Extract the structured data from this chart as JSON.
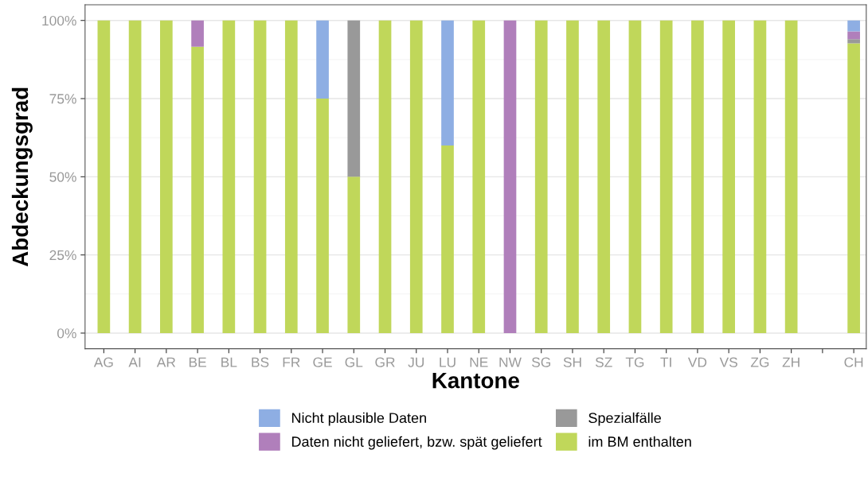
{
  "chart_data": {
    "type": "bar",
    "stacked": true,
    "xlabel": "Kantone",
    "ylabel": "Abdeckungsgrad",
    "categories": [
      "AG",
      "AI",
      "AR",
      "BE",
      "BL",
      "BS",
      "FR",
      "GE",
      "GL",
      "GR",
      "JU",
      "LU",
      "NE",
      "NW",
      "SG",
      "SH",
      "SZ",
      "TG",
      "TI",
      "VD",
      "VS",
      "ZG",
      "ZH",
      null,
      "CH"
    ],
    "series": [
      {
        "name": "im BM enthalten",
        "color": "#c0d75a",
        "values": [
          100,
          100,
          100,
          91.6,
          100,
          100,
          100,
          75,
          50,
          100,
          100,
          60,
          100,
          null,
          100,
          100,
          100,
          100,
          100,
          100,
          100,
          100,
          100,
          null,
          92.7
        ]
      },
      {
        "name": "Spezialfälle",
        "color": "#999999",
        "values": [
          null,
          null,
          null,
          null,
          null,
          null,
          null,
          null,
          50,
          null,
          null,
          null,
          null,
          null,
          null,
          null,
          null,
          null,
          null,
          null,
          null,
          null,
          null,
          null,
          1.3
        ]
      },
      {
        "name": "Daten nicht geliefert, bzw. spät geliefert",
        "color": "#b07fbb",
        "values": [
          null,
          null,
          null,
          8.4,
          null,
          null,
          null,
          null,
          null,
          null,
          null,
          null,
          null,
          100,
          null,
          null,
          null,
          null,
          null,
          null,
          null,
          null,
          null,
          null,
          2.5
        ]
      },
      {
        "name": "Nicht plausible Daten",
        "color": "#8eaee3",
        "values": [
          null,
          null,
          null,
          null,
          null,
          null,
          null,
          25,
          null,
          null,
          null,
          40,
          null,
          null,
          null,
          null,
          null,
          null,
          null,
          null,
          null,
          null,
          null,
          null,
          3.5
        ]
      }
    ],
    "ylim": [
      -5,
      105
    ],
    "yticks": [
      {
        "value": 0,
        "label": "0%"
      },
      {
        "value": 25,
        "label": "25%"
      },
      {
        "value": 50,
        "label": "50%"
      },
      {
        "value": 75,
        "label": "75%"
      },
      {
        "value": 100,
        "label": "100%"
      }
    ],
    "grid": "y",
    "legend": "bottom"
  }
}
